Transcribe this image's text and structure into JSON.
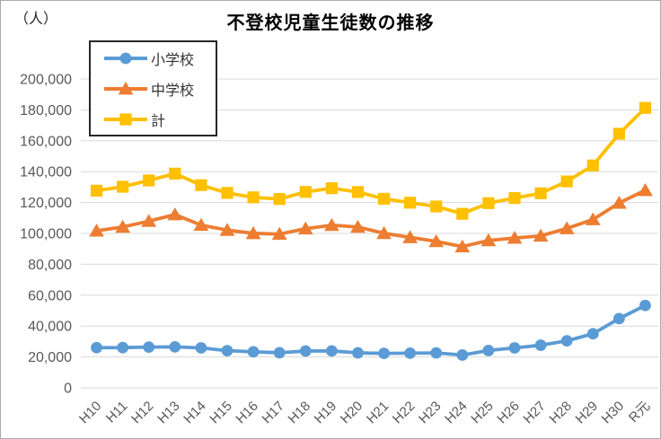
{
  "chart_data": {
    "type": "line",
    "title": "不登校児童生徒数の推移",
    "ylabel": "（人）",
    "xlabel": "",
    "categories": [
      "H10",
      "H11",
      "H12",
      "H13",
      "H14",
      "H15",
      "H16",
      "H17",
      "H18",
      "H19",
      "H20",
      "H21",
      "H22",
      "H23",
      "H24",
      "H25",
      "H26",
      "H27",
      "H28",
      "H29",
      "H30",
      "R元"
    ],
    "series": [
      {
        "name": "小学校",
        "marker": "circle",
        "color": "#5B9BD5",
        "values": [
          26017,
          26047,
          26373,
          26511,
          25869,
          24077,
          23318,
          22709,
          23825,
          23927,
          22652,
          22327,
          22463,
          22622,
          21243,
          24175,
          25864,
          27583,
          30448,
          35032,
          44841,
          53350
        ]
      },
      {
        "name": "中学校",
        "marker": "triangle",
        "color": "#ED7D31",
        "values": [
          101675,
          104180,
          107913,
          112211,
          105383,
          102149,
          100040,
          99578,
          103069,
          105328,
          104153,
          100105,
          97428,
          94836,
          91446,
          95442,
          97033,
          98408,
          103235,
          108999,
          119687,
          127922
        ]
      },
      {
        "name": "計",
        "marker": "square",
        "color": "#FFC000",
        "values": [
          127692,
          130227,
          134286,
          138722,
          131252,
          126226,
          123358,
          122287,
          126894,
          129255,
          126805,
          122432,
          119891,
          117458,
          112689,
          119617,
          122897,
          125991,
          133683,
          144031,
          164528,
          181272
        ]
      }
    ],
    "ylim": [
      0,
      200000
    ],
    "ytick_interval": 20000,
    "ytick_labels": [
      "0",
      "20,000",
      "40,000",
      "60,000",
      "80,000",
      "100,000",
      "120,000",
      "140,000",
      "160,000",
      "180,000",
      "200,000"
    ],
    "grid": true,
    "legend_position": "top-left",
    "colors": {
      "grid_line": "#D9D9D9",
      "axis_text": "#595959",
      "title_text": "#000000",
      "legend_border": "#262626",
      "frame_border": "#ABABAB"
    }
  }
}
